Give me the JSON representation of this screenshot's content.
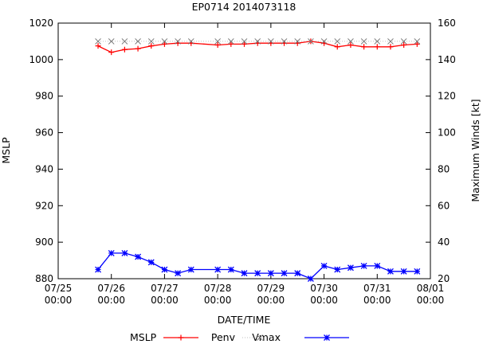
{
  "chart_data": {
    "type": "line",
    "title": "EP0714 2014073118",
    "xlabel": "DATE/TIME",
    "ylabel": "MSLP",
    "y2label": "Maximum Winds [kt]",
    "x_unit": "days since 07/25 00:00",
    "xlim": [
      0,
      7
    ],
    "ylim": [
      880,
      1020
    ],
    "y2lim": [
      20,
      160
    ],
    "x_ticks": [
      {
        "value": 0,
        "line1": "07/25",
        "line2": "00:00"
      },
      {
        "value": 1,
        "line1": "07/26",
        "line2": "00:00"
      },
      {
        "value": 2,
        "line1": "07/27",
        "line2": "00:00"
      },
      {
        "value": 3,
        "line1": "07/28",
        "line2": "00:00"
      },
      {
        "value": 4,
        "line1": "07/29",
        "line2": "00:00"
      },
      {
        "value": 5,
        "line1": "07/30",
        "line2": "00:00"
      },
      {
        "value": 6,
        "line1": "07/31",
        "line2": "00:00"
      },
      {
        "value": 7,
        "line1": "08/01",
        "line2": "00:00"
      }
    ],
    "y_ticks": [
      880,
      900,
      920,
      940,
      960,
      980,
      1000,
      1020
    ],
    "y2_ticks": [
      20,
      40,
      60,
      80,
      100,
      120,
      140,
      160
    ],
    "grid": false,
    "legend_position": "bottom",
    "series": [
      {
        "name": "MSLP",
        "axis": "y",
        "color": "#ff0000",
        "marker": "plus",
        "x": [],
        "values": []
      },
      {
        "name": "Penv",
        "axis": "y",
        "color": "#ff0000",
        "marker": "plus",
        "x": [
          0.75,
          1.0,
          1.25,
          1.5,
          1.75,
          2.0,
          2.25,
          2.5,
          3.0,
          3.25,
          3.5,
          3.75,
          4.0,
          4.25,
          4.5,
          4.75,
          5.0,
          5.25,
          5.5,
          5.75,
          6.0,
          6.25,
          6.5,
          6.75
        ],
        "values": [
          1007.5,
          1004,
          1005.5,
          1006,
          1007.5,
          1008.5,
          1009,
          1009,
          1008,
          1008.5,
          1008.5,
          1009,
          1009,
          1009,
          1009,
          1010,
          1009,
          1007,
          1008,
          1007,
          1007,
          1007,
          1008,
          1008.5
        ]
      },
      {
        "name": "Vmax",
        "axis": "y2",
        "color": "#aaaaaa",
        "marker": "cross",
        "dashed": true,
        "x": [
          0.75,
          1.0,
          1.25,
          1.5,
          1.75,
          2.0,
          2.25,
          2.5,
          3.0,
          3.25,
          3.5,
          3.75,
          4.0,
          4.25,
          4.5,
          4.75,
          5.0,
          5.25,
          5.5,
          5.75,
          6.0,
          6.25,
          6.5,
          6.75
        ],
        "values": [
          150,
          150,
          150,
          150,
          150,
          150,
          150,
          150,
          150,
          150,
          150,
          150,
          150,
          150,
          150,
          150,
          150,
          150,
          150,
          150,
          150,
          150,
          150,
          150
        ]
      },
      {
        "name": "",
        "axis": "y2",
        "color": "#0000ff",
        "marker": "star",
        "x": [
          0.75,
          1.0,
          1.25,
          1.5,
          1.75,
          2.0,
          2.25,
          2.5,
          3.0,
          3.25,
          3.5,
          3.75,
          4.0,
          4.25,
          4.5,
          4.75,
          5.0,
          5.25,
          5.5,
          5.75,
          6.0,
          6.25,
          6.5,
          6.75
        ],
        "values": [
          25,
          34,
          34,
          32,
          29,
          25,
          23,
          25,
          25,
          25,
          23,
          23,
          23,
          23,
          23,
          20,
          27,
          25,
          26,
          27,
          27,
          24,
          24,
          24
        ]
      }
    ]
  }
}
